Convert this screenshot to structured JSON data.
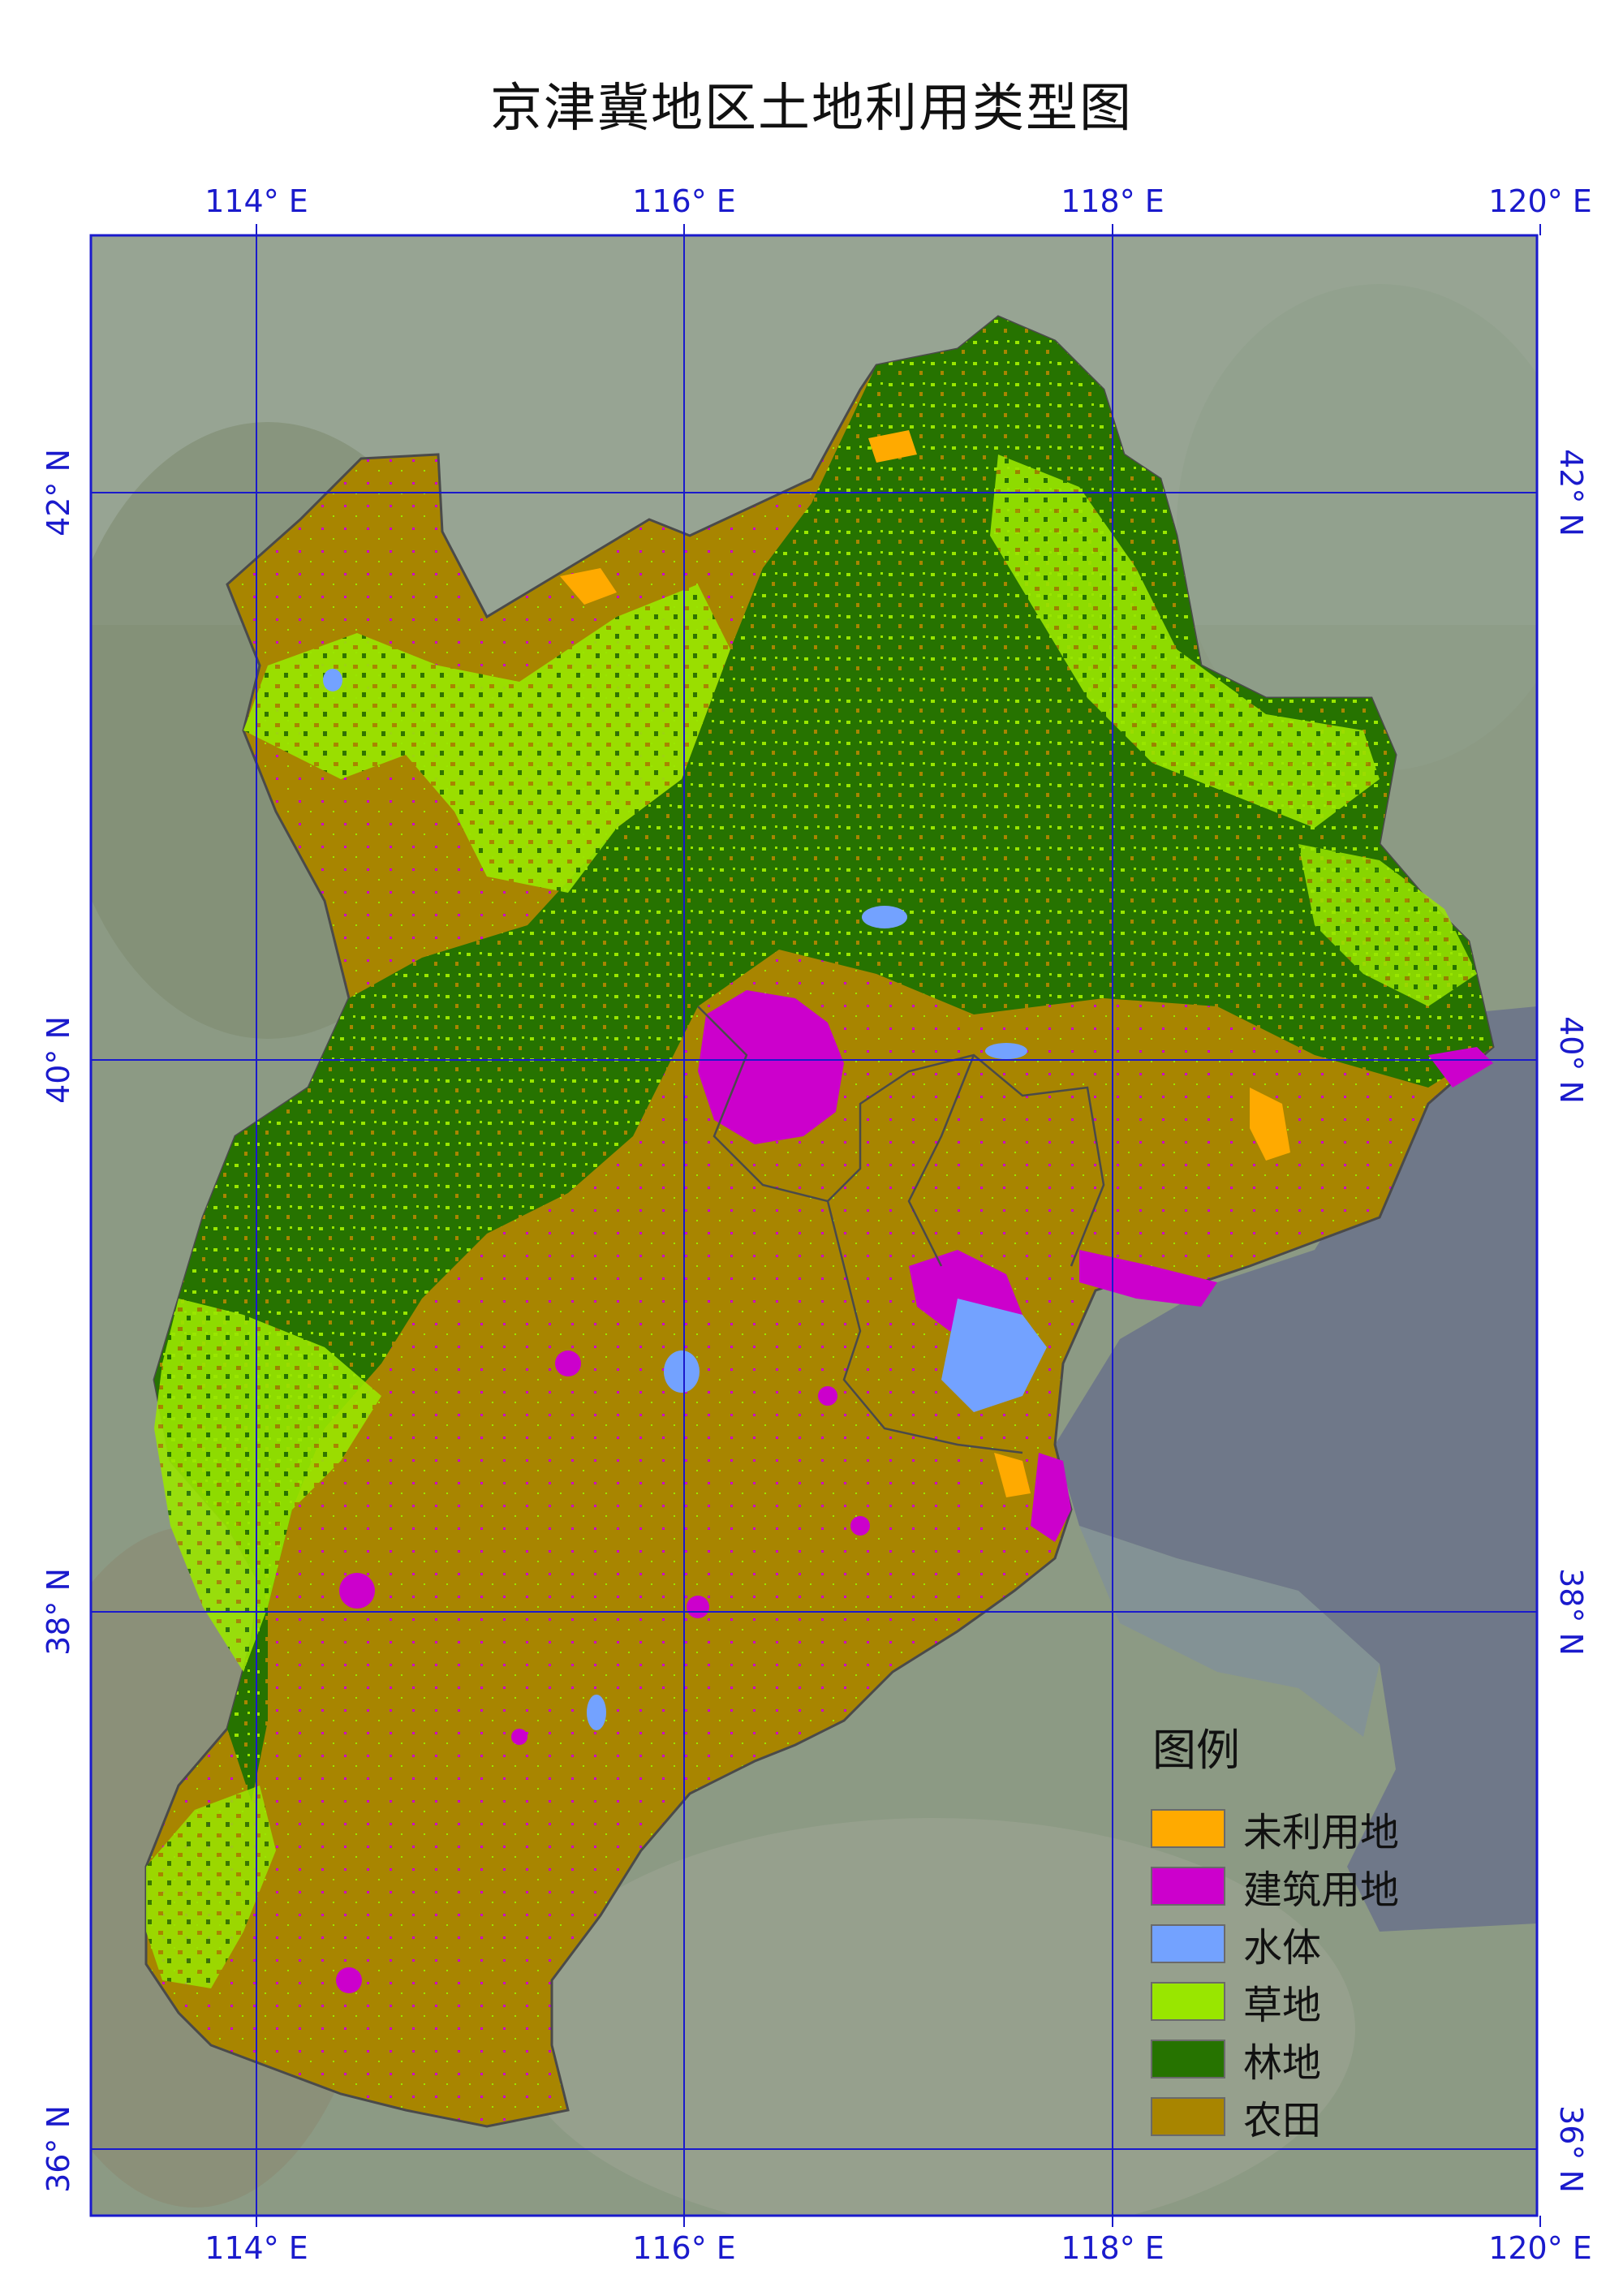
{
  "title": "京津冀地区土地利用类型图",
  "axes": {
    "longitude_labels": [
      "114° E",
      "116° E",
      "118° E",
      "120° E"
    ],
    "latitude_labels": [
      "42° N",
      "40° N",
      "38° N",
      "36° N"
    ]
  },
  "legend": {
    "title": "图例",
    "items": [
      {
        "label": "未利用地",
        "color": "#FFAA00"
      },
      {
        "label": "建筑用地",
        "color": "#CC00CC"
      },
      {
        "label": "水体",
        "color": "#73A2FF"
      },
      {
        "label": "草地",
        "color": "#99E600"
      },
      {
        "label": "林地",
        "color": "#267300"
      },
      {
        "label": "农田",
        "color": "#A88500"
      }
    ]
  },
  "colors": {
    "graticule": "#1a1acc",
    "frame": "#1a1acc",
    "sea": "#6f7889",
    "background_land": "#8a9a7a"
  }
}
